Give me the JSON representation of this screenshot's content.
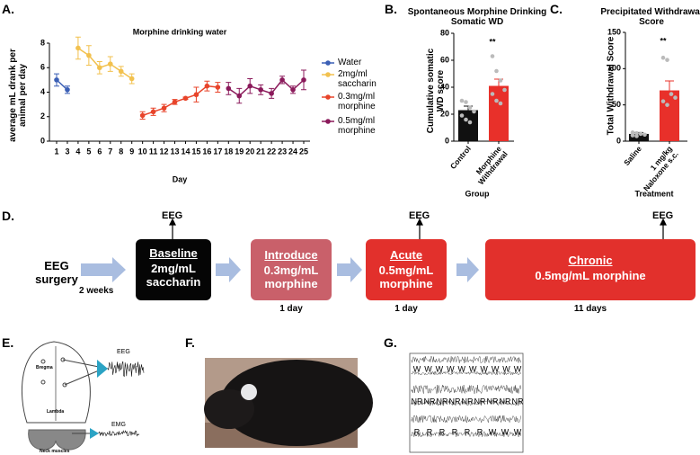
{
  "panels": {
    "a": "A.",
    "b": "B.",
    "c": "C.",
    "d": "D.",
    "e": "E.",
    "f": "F.",
    "g": "G."
  },
  "chart_data": [
    {
      "type": "line",
      "title": "Morphine drinking water",
      "x_label": "Day",
      "y_label": "average mL drank per animal per day",
      "categories": [
        "1",
        "3",
        "4",
        "5",
        "6",
        "7",
        "8",
        "9",
        "10",
        "11",
        "12",
        "13",
        "14",
        "15",
        "16",
        "17",
        "18",
        "19",
        "20",
        "21",
        "22",
        "23",
        "24",
        "25"
      ],
      "ylim": [
        0,
        8
      ],
      "yticks": [
        0,
        2,
        4,
        6,
        8
      ],
      "series": [
        {
          "name": "Water",
          "color": "#3b5fb5",
          "values": [
            5.0,
            4.2,
            null,
            null,
            null,
            null,
            null,
            null,
            null,
            null,
            null,
            null,
            null,
            null,
            null,
            null,
            null,
            null,
            null,
            null,
            null,
            null,
            null,
            null
          ],
          "errors": [
            0.5,
            0.3,
            null,
            null,
            null,
            null,
            null,
            null,
            null,
            null,
            null,
            null,
            null,
            null,
            null,
            null,
            null,
            null,
            null,
            null,
            null,
            null,
            null,
            null
          ]
        },
        {
          "name": "2mg/ml saccharin",
          "color": "#f2c14e",
          "values": [
            null,
            null,
            7.6,
            7.0,
            6.0,
            6.3,
            5.7,
            5.1,
            null,
            null,
            null,
            null,
            null,
            null,
            null,
            null,
            null,
            null,
            null,
            null,
            null,
            null,
            null,
            null
          ],
          "errors": [
            null,
            null,
            0.9,
            0.8,
            0.5,
            0.6,
            0.4,
            0.4,
            null,
            null,
            null,
            null,
            null,
            null,
            null,
            null,
            null,
            null,
            null,
            null,
            null,
            null,
            null,
            null
          ]
        },
        {
          "name": "0.3mg/ml morphine",
          "color": "#e8442a",
          "values": [
            null,
            null,
            null,
            null,
            null,
            null,
            null,
            null,
            2.1,
            2.4,
            2.7,
            3.2,
            3.5,
            3.8,
            4.5,
            4.4,
            null,
            null,
            null,
            null,
            null,
            null,
            null,
            null
          ],
          "errors": [
            null,
            null,
            null,
            null,
            null,
            null,
            null,
            null,
            0.3,
            0.3,
            0.3,
            0.2,
            0.1,
            0.6,
            0.4,
            0.4,
            null,
            null,
            null,
            null,
            null,
            null,
            null,
            null
          ]
        },
        {
          "name": "0.5mg/ml morphine",
          "color": "#8b1a5b",
          "values": [
            null,
            null,
            null,
            null,
            null,
            null,
            null,
            null,
            null,
            null,
            null,
            null,
            null,
            null,
            null,
            null,
            4.3,
            3.7,
            4.5,
            4.2,
            3.9,
            5.0,
            4.2,
            5.0
          ],
          "errors": [
            null,
            null,
            null,
            null,
            null,
            null,
            null,
            null,
            null,
            null,
            null,
            null,
            null,
            null,
            null,
            null,
            0.5,
            0.6,
            0.6,
            0.4,
            0.4,
            0.3,
            0.3,
            0.8
          ]
        }
      ]
    },
    {
      "type": "bar",
      "title": "Spontaneous Morphine Drinking Somatic WD",
      "x_label": "Group",
      "y_label": "Cumulative somatic WD score",
      "annotation": "**",
      "categories": [
        "Control",
        "Morphine Withdrawal"
      ],
      "values": [
        23,
        41
      ],
      "errors": [
        3,
        5
      ],
      "colors": [
        "#111111",
        "#e8302a"
      ],
      "points": [
        [
          30,
          29,
          25,
          22,
          19,
          16,
          14
        ],
        [
          63,
          52,
          45,
          38,
          35,
          30,
          28
        ]
      ],
      "ylim": [
        0,
        80
      ],
      "yticks": [
        0,
        20,
        40,
        60,
        80
      ]
    },
    {
      "type": "bar",
      "title": "Precipitated Withdrawal Score",
      "x_label": "Treatment",
      "y_label": "Total Withdrawal Score",
      "annotation": "**",
      "categories": [
        "Saline",
        "1 mg/kg Naloxone s.c."
      ],
      "values": [
        10,
        70
      ],
      "errors": [
        2,
        13
      ],
      "colors": [
        "#111111",
        "#e8302a"
      ],
      "points": [
        [
          12,
          11,
          10,
          9,
          8,
          7
        ],
        [
          115,
          112,
          65,
          60,
          55,
          50
        ]
      ],
      "ylim": [
        0,
        150
      ],
      "yticks": [
        0,
        50,
        100,
        150
      ]
    }
  ],
  "timeline": {
    "start": "EEG surgery",
    "gap": "2 weeks",
    "eeg": "EEG",
    "stages": [
      {
        "name": "Baseline",
        "detail": "2mg/mL saccharin",
        "duration": null
      },
      {
        "name": "Introduce",
        "detail": "0.3mg/mL morphine",
        "duration": "1 day"
      },
      {
        "name": "Acute",
        "detail": "0.5mg/mL morphine",
        "duration": "1 day"
      },
      {
        "name": "Chronic",
        "detail": "0.5mg/mL morphine",
        "duration": "11 days"
      }
    ]
  },
  "electrodes": {
    "bregma": "Bregma",
    "lambda": "Lambda",
    "eeg": "EEG",
    "emg": "EMG",
    "muscles": "Neck muscles"
  },
  "traces": {
    "rows": [
      [
        "W",
        "W",
        "W",
        "W",
        "W",
        "W",
        "W",
        "W",
        "W",
        "W"
      ],
      [
        "NR",
        "NR",
        "NR",
        "NR",
        "NR",
        "NR",
        "NR",
        "NR",
        "NR"
      ],
      [
        "R",
        "R",
        "R",
        "R",
        "R",
        "R",
        "W",
        "W",
        "W"
      ]
    ]
  }
}
